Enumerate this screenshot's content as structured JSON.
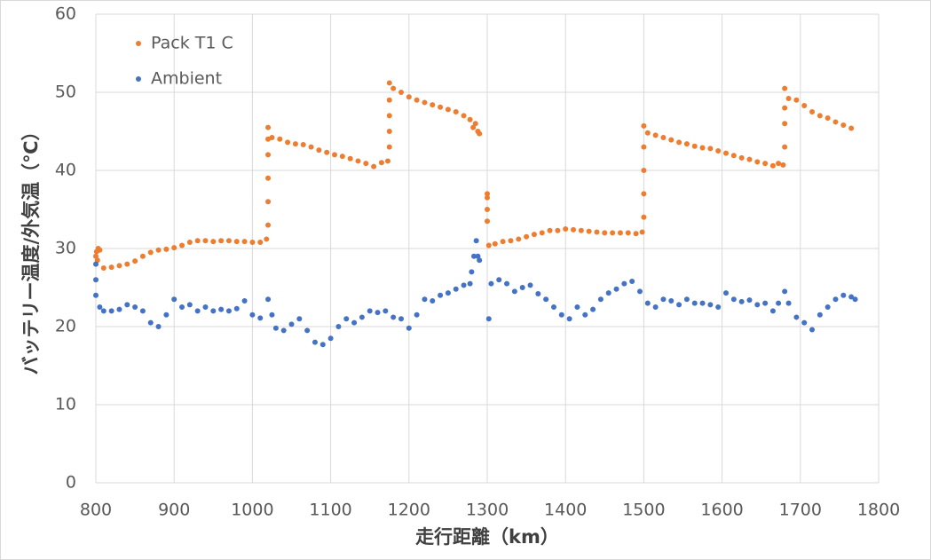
{
  "chart_data": {
    "type": "scatter",
    "x_label": "走行距離（km）",
    "y_label": "バッテリー温度/外気温（℃）",
    "xlim": [
      800,
      1800
    ],
    "xticks": [
      800,
      900,
      1000,
      1100,
      1200,
      1300,
      1400,
      1500,
      1600,
      1700,
      1800
    ],
    "ylim": [
      0,
      60
    ],
    "yticks": [
      0,
      10,
      20,
      30,
      40,
      50,
      60
    ],
    "grid": true,
    "legend": "upper-left",
    "series": [
      {
        "name": "Pack T1 C",
        "color": "#ed7d31",
        "x": [
          800,
          801,
          802,
          803,
          805,
          810,
          820,
          830,
          840,
          850,
          860,
          870,
          880,
          890,
          900,
          910,
          920,
          930,
          940,
          950,
          960,
          970,
          980,
          990,
          1000,
          1010,
          1018,
          1020,
          1020,
          1020,
          1020,
          1020,
          1020,
          1025,
          1035,
          1045,
          1055,
          1065,
          1075,
          1085,
          1095,
          1105,
          1115,
          1125,
          1135,
          1145,
          1155,
          1165,
          1173,
          1175,
          1175,
          1175,
          1175,
          1175,
          1180,
          1190,
          1200,
          1210,
          1220,
          1230,
          1240,
          1250,
          1260,
          1270,
          1278,
          1282,
          1285,
          1288,
          1290,
          1300,
          1300,
          1300,
          1300,
          1302,
          1310,
          1320,
          1330,
          1340,
          1350,
          1360,
          1370,
          1380,
          1390,
          1400,
          1410,
          1420,
          1430,
          1440,
          1450,
          1460,
          1470,
          1480,
          1490,
          1498,
          1500,
          1500,
          1500,
          1500,
          1500,
          1505,
          1515,
          1525,
          1535,
          1545,
          1555,
          1565,
          1575,
          1585,
          1595,
          1605,
          1615,
          1625,
          1635,
          1645,
          1655,
          1665,
          1672,
          1678,
          1680,
          1680,
          1680,
          1680,
          1685,
          1695,
          1705,
          1715,
          1725,
          1735,
          1745,
          1755,
          1765
        ],
        "values": [
          29,
          29.6,
          28.5,
          30,
          29.8,
          27.5,
          27.6,
          27.8,
          28,
          28.4,
          29,
          29.5,
          29.8,
          29.9,
          30.1,
          30.4,
          30.8,
          31,
          31,
          30.9,
          31,
          31,
          30.9,
          30.9,
          30.8,
          30.8,
          31.2,
          33,
          36,
          39,
          42,
          44,
          45.5,
          44.2,
          44,
          43.6,
          43.4,
          43.3,
          43,
          42.6,
          42.3,
          42,
          41.8,
          41.5,
          41.2,
          40.9,
          40.5,
          41,
          41.2,
          43,
          45,
          47,
          49,
          51.2,
          50.5,
          50,
          49.4,
          49,
          48.7,
          48.4,
          48.1,
          47.8,
          47.5,
          47,
          46.5,
          45.5,
          46,
          45,
          44.7,
          33.5,
          35,
          36.5,
          37,
          30.4,
          30.6,
          30.9,
          31,
          31.2,
          31.5,
          31.8,
          32,
          32.3,
          32.3,
          32.5,
          32.4,
          32.3,
          32.2,
          32.1,
          32,
          32,
          32,
          32,
          31.9,
          32.1,
          34,
          37,
          40,
          43,
          45.7,
          44.8,
          44.5,
          44.2,
          43.9,
          43.6,
          43.4,
          43.1,
          42.9,
          42.8,
          42.5,
          42.2,
          41.9,
          41.6,
          41.4,
          41.1,
          40.9,
          40.6,
          40.9,
          40.7,
          43,
          46,
          48,
          50.5,
          49.2,
          49,
          48.3,
          47.5,
          47,
          46.7,
          46.2,
          45.8,
          45.4
        ]
      },
      {
        "name": "Ambient",
        "color": "#4472c4",
        "x": [
          800,
          800,
          800,
          805,
          810,
          820,
          830,
          840,
          850,
          860,
          870,
          880,
          890,
          900,
          910,
          920,
          930,
          940,
          950,
          960,
          970,
          980,
          990,
          1000,
          1010,
          1020,
          1025,
          1030,
          1040,
          1050,
          1060,
          1070,
          1080,
          1090,
          1100,
          1110,
          1120,
          1130,
          1140,
          1150,
          1160,
          1170,
          1180,
          1190,
          1200,
          1210,
          1220,
          1230,
          1240,
          1250,
          1260,
          1270,
          1278,
          1280,
          1283,
          1286,
          1288,
          1290,
          1302,
          1305,
          1315,
          1325,
          1335,
          1345,
          1355,
          1365,
          1375,
          1385,
          1395,
          1405,
          1415,
          1425,
          1435,
          1445,
          1455,
          1465,
          1475,
          1485,
          1495,
          1505,
          1515,
          1525,
          1535,
          1545,
          1555,
          1565,
          1575,
          1585,
          1595,
          1605,
          1615,
          1625,
          1635,
          1645,
          1655,
          1665,
          1672,
          1680,
          1685,
          1695,
          1705,
          1715,
          1725,
          1735,
          1745,
          1755,
          1765,
          1770
        ],
        "values": [
          28,
          26,
          24,
          22.5,
          22,
          22,
          22.2,
          22.8,
          22.5,
          22,
          20.5,
          20,
          21.5,
          23.5,
          22.5,
          22.8,
          22,
          22.5,
          22,
          22.2,
          22,
          22.3,
          23.3,
          21.5,
          21.1,
          23.5,
          21.5,
          19.8,
          19.5,
          20.3,
          21,
          19.5,
          18,
          17.7,
          18.5,
          20,
          21,
          20.5,
          21.2,
          22,
          21.8,
          22,
          21.2,
          21,
          19.8,
          21.5,
          23.5,
          23.3,
          24,
          24.3,
          24.8,
          25.3,
          25.5,
          27,
          29,
          31,
          29,
          28.5,
          21,
          25.5,
          26,
          25.5,
          24.5,
          25,
          25.3,
          24.2,
          23.5,
          22.5,
          21.5,
          21,
          22.5,
          21.5,
          22.2,
          23.5,
          24.3,
          24.8,
          25.5,
          25.8,
          24.5,
          23,
          22.5,
          23.5,
          23.3,
          22.8,
          23.5,
          23,
          23,
          22.8,
          22.5,
          24.3,
          23.5,
          23.2,
          23.4,
          22.8,
          23,
          22,
          23,
          24.5,
          23,
          21.2,
          20.5,
          19.6,
          21.5,
          22.5,
          23.5,
          24,
          23.8,
          23.5
        ]
      }
    ]
  }
}
